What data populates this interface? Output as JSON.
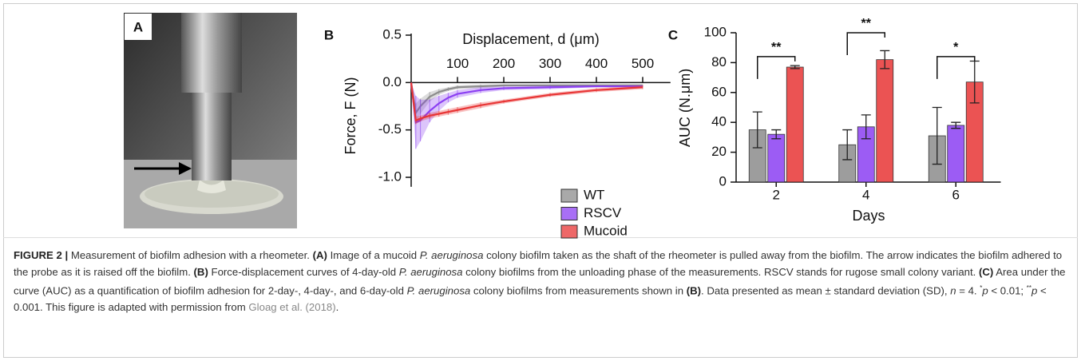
{
  "panel_a": {
    "label": "A"
  },
  "chart_data": [
    {
      "type": "line",
      "panel_label": "B",
      "x_label": "Displacement, d (μm)",
      "y_label": "Force, F (N)",
      "x": [
        0,
        10,
        20,
        40,
        60,
        80,
        100,
        150,
        200,
        300,
        400,
        500
      ],
      "series": [
        {
          "name": "WT",
          "color": "#8c8c8c",
          "values": [
            0,
            -0.32,
            -0.25,
            -0.15,
            -0.1,
            -0.07,
            -0.05,
            -0.04,
            -0.03,
            -0.03,
            -0.03,
            -0.03
          ],
          "error": [
            0,
            0.1,
            0.08,
            0.05,
            0.03,
            0.02,
            0.02,
            0.02,
            0.01,
            0.01,
            0.01,
            0.01
          ]
        },
        {
          "name": "RSCV",
          "color": "#8b3ff2",
          "values": [
            0,
            -0.42,
            -0.4,
            -0.3,
            -0.22,
            -0.16,
            -0.12,
            -0.08,
            -0.06,
            -0.05,
            -0.04,
            -0.04
          ],
          "error": [
            0,
            0.28,
            0.22,
            0.12,
            0.08,
            0.05,
            0.04,
            0.03,
            0.02,
            0.02,
            0.01,
            0.01
          ]
        },
        {
          "name": "Mucoid",
          "color": "#e83535",
          "values": [
            0,
            -0.4,
            -0.38,
            -0.35,
            -0.33,
            -0.31,
            -0.29,
            -0.24,
            -0.2,
            -0.13,
            -0.08,
            -0.05
          ],
          "error": [
            0,
            0.04,
            0.03,
            0.03,
            0.03,
            0.03,
            0.03,
            0.03,
            0.02,
            0.02,
            0.02,
            0.02
          ]
        }
      ],
      "xlim": [
        0,
        560
      ],
      "xticks": [
        100,
        200,
        300,
        400,
        500
      ],
      "ylim": [
        -1.1,
        0.5
      ],
      "yticks": [
        0.5,
        {
          "value": 0,
          "label": "0.0"
        },
        {
          "value": -0.5,
          "label": "-0.5"
        },
        {
          "value": -1,
          "label": "-1.0"
        }
      ],
      "legend": "lower right"
    },
    {
      "type": "bar",
      "panel_label": "C",
      "x_label": "Days",
      "y_label": "AUC (N.μm)",
      "categories": [
        "2",
        "4",
        "6"
      ],
      "series": [
        {
          "color": "#8c8c8c",
          "values": [
            35,
            25,
            31
          ],
          "error": [
            12,
            10,
            19
          ]
        },
        {
          "color": "#8b3ff2",
          "values": [
            32,
            37,
            38
          ],
          "error": [
            3,
            8,
            2
          ]
        },
        {
          "color": "#e83535",
          "values": [
            77,
            82,
            67
          ],
          "error": [
            1,
            6,
            14
          ]
        }
      ],
      "ylim": [
        0,
        100
      ],
      "yticks": [
        0,
        20,
        40,
        60,
        80,
        100
      ],
      "annotations": [
        {
          "text": "**",
          "category": "2",
          "y": 84
        },
        {
          "text": "**",
          "category": "4",
          "y": 100
        },
        {
          "text": "*",
          "category": "6",
          "y": 84
        }
      ]
    }
  ],
  "caption": [
    "FIGURE 2 |",
    " Measurement of biofilm adhesion with a rheometer. ",
    "(A)",
    " Image of a mucoid ",
    "P. aeruginosa",
    " colony biofilm taken as the shaft of the rheometer is pulled away from the biofilm. The arrow indicates the biofilm adhered to the probe as it is raised off the biofilm. ",
    "(B)",
    " Force-displacement curves of 4-day-old ",
    "P. aeruginosa",
    " colony biofilms from the unloading phase of the measurements. RSCV stands for rugose small colony variant. ",
    "(C)",
    " Area under the curve (AUC) as a quantification of biofilm adhesion for 2-day-, 4-day-, and 6-day-old ",
    "P. aeruginosa",
    " colony biofilms from measurements shown in ",
    "(B)",
    ". Data presented as mean ± standard deviation (SD), ",
    "n",
    " = 4. ",
    "*",
    "p",
    " < 0.01; ",
    "**",
    "p",
    " < 0.001. This figure is adapted with permission from ",
    "Gloag et al. (2018)",
    "."
  ]
}
